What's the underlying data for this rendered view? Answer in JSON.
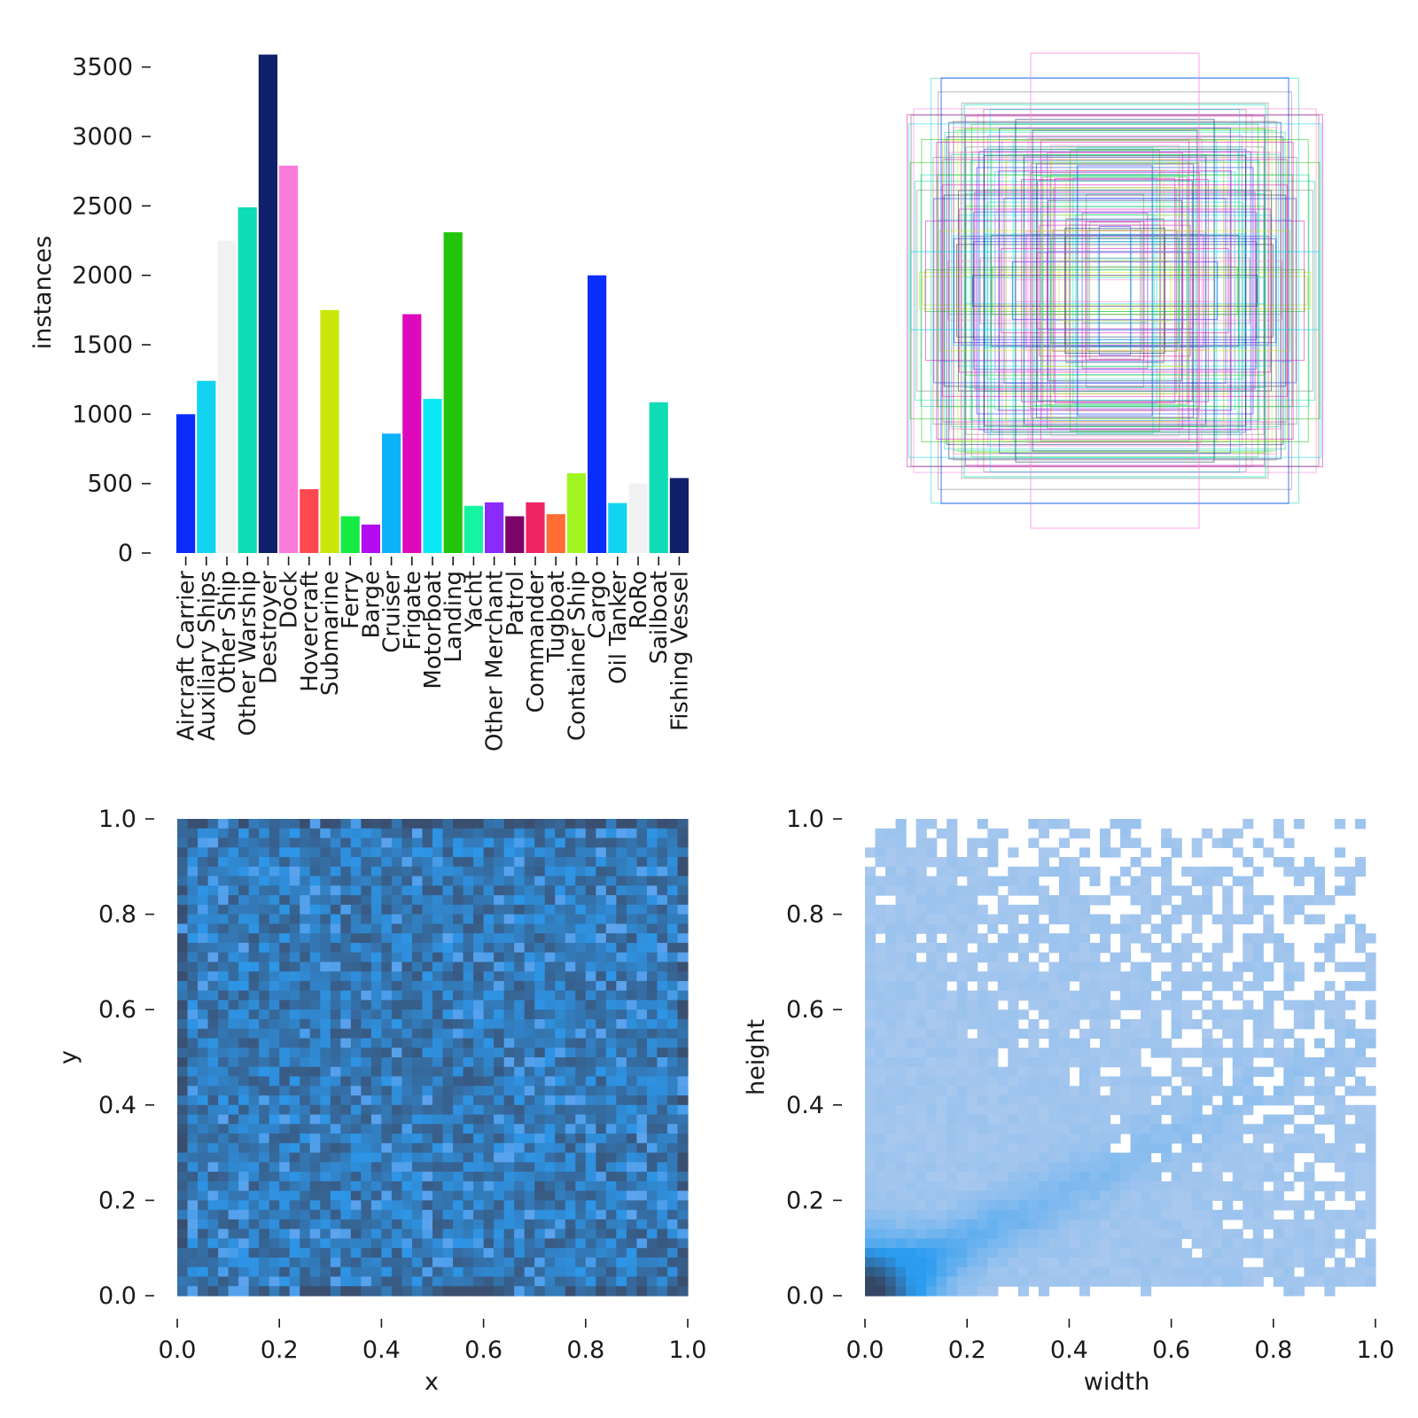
{
  "chart_data": [
    {
      "type": "bar",
      "title": "",
      "xlabel": "",
      "ylabel": "instances",
      "ylim": [
        0,
        3600
      ],
      "yticks": [
        0,
        500,
        1000,
        1500,
        2000,
        2500,
        3000,
        3500
      ],
      "categories": [
        "Aircraft Carrier",
        "Auxiliary Ships",
        "Other Ship",
        "Other Warship",
        "Destroyer",
        "Dock",
        "Hovercraft",
        "Submarine",
        "Ferry",
        "Barge",
        "Cruiser",
        "Frigate",
        "Motorboat",
        "Landing",
        "Yacht",
        "Other Merchant",
        "Patrol",
        "Commander",
        "Tugboat",
        "Container Ship",
        "Cargo",
        "Oil Tanker",
        "RoRo",
        "Sailboat",
        "Fishing Vessel"
      ],
      "values": [
        1000,
        1240,
        2250,
        2490,
        3590,
        2790,
        460,
        1750,
        265,
        205,
        860,
        1720,
        1110,
        2310,
        340,
        365,
        265,
        365,
        280,
        575,
        2000,
        360,
        500,
        1085,
        540
      ],
      "colors": [
        "#0b2dfb",
        "#12d4f0",
        "#f0f2f2",
        "#0ddcb4",
        "#10206a",
        "#fb7bd8",
        "#ff4950",
        "#cae70a",
        "#16eb44",
        "#b20cf2",
        "#0cb2f6",
        "#de09ba",
        "#08e9f5",
        "#22c40c",
        "#16f4a2",
        "#8a2bfa",
        "#7c0368",
        "#ef2563",
        "#ff6d34",
        "#a1f622",
        "#0b2dfb",
        "#12d4f0",
        "#f0f2f2",
        "#0ddcb4",
        "#10206a"
      ]
    },
    {
      "type": "box_overlay",
      "title": "",
      "description_colors": [
        "#0b2dfb",
        "#12d4f0",
        "#fb7bd8",
        "#0ddcb4",
        "#10206a",
        "#cae70a",
        "#22c40c",
        "#de09ba",
        "#808080"
      ]
    },
    {
      "type": "heatmap",
      "title": "",
      "xlabel": "x",
      "ylabel": "y",
      "xlim": [
        0.0,
        1.0
      ],
      "ylim": [
        0.0,
        1.0
      ],
      "xticks": [
        "0.0",
        "0.2",
        "0.4",
        "0.6",
        "0.8",
        "1.0"
      ],
      "yticks": [
        "0.0",
        "0.2",
        "0.4",
        "0.6",
        "0.8",
        "1.0"
      ],
      "bins": 50,
      "base_color": "#2e96e8",
      "dark_color": "#3a4f70"
    },
    {
      "type": "heatmap",
      "title": "",
      "xlabel": "width",
      "ylabel": "height",
      "xlim": [
        0.0,
        1.0
      ],
      "ylim": [
        0.0,
        1.0
      ],
      "xticks": [
        "0.0",
        "0.2",
        "0.4",
        "0.6",
        "0.8",
        "1.0"
      ],
      "yticks": [
        "0.0",
        "0.2",
        "0.4",
        "0.6",
        "0.8",
        "1.0"
      ],
      "bins": 50,
      "base_color": "#a9c8ee",
      "dense_color": "#2b9cf0",
      "densest_color": "#354764"
    }
  ]
}
